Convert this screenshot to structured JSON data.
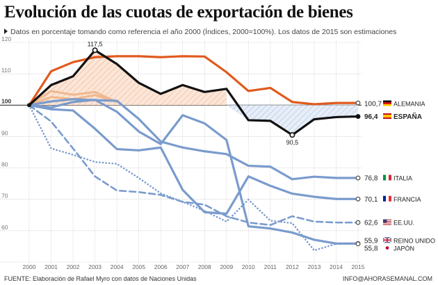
{
  "header": {
    "title": "Evolución de las cuotas de exportación de bienes",
    "subtitle": "Datos en porcentaje tomando como referencia el año 2000 (Índices, 2000=100%). Los datos de 2015 son estimaciones"
  },
  "footer": {
    "source": "FUENTE: Elaboración de Rafael Myro con datos de Naciones Unidas",
    "credit": "INFO@AHORASEMANAL.COM"
  },
  "chart_data": {
    "type": "line",
    "x": [
      2000,
      2001,
      2002,
      2003,
      2004,
      2005,
      2006,
      2007,
      2008,
      2009,
      2010,
      2011,
      2012,
      2013,
      2014,
      2015
    ],
    "ylim": [
      50,
      120
    ],
    "yticks": [
      50,
      60,
      70,
      80,
      90,
      100,
      110,
      120
    ],
    "baseline": 100,
    "baseline_label": "100",
    "series": [
      {
        "name": "ALEMANIA",
        "label": "100,7",
        "color": "#e05a1e",
        "style": "solid",
        "width": 3.2,
        "flag": "germany",
        "values": [
          100,
          110.8,
          113.7,
          115.3,
          115.6,
          115.6,
          115.3,
          115.6,
          115.5,
          110.5,
          104.5,
          105.5,
          101,
          100.3,
          100.7,
          100.7
        ]
      },
      {
        "name": "ESPAÑA",
        "label": "96,4",
        "color": "#111111",
        "style": "solid",
        "width": 3.2,
        "flag": "spain",
        "bold": true,
        "values": [
          100,
          106.4,
          109.2,
          117.5,
          113.1,
          107.1,
          103.6,
          106.4,
          104.2,
          105.2,
          95.2,
          95.0,
          90.5,
          95.5,
          96.2,
          96.4
        ]
      },
      {
        "name": "ITALIA",
        "label": "76,8",
        "color": "#7a9bcd",
        "style": "solid",
        "width": 3.2,
        "flag": "italy",
        "values": [
          100,
          101.2,
          101.9,
          101.6,
          101.4,
          95.6,
          88.4,
          86.5,
          85.3,
          84.4,
          80.7,
          80.4,
          76.4,
          77.2,
          76.8,
          76.8
        ]
      },
      {
        "name": "FRANCIA",
        "label": "70,1",
        "color": "#7a9bcd",
        "style": "solid",
        "width": 3.2,
        "flag": "france",
        "values": [
          100,
          98.7,
          98.3,
          92.5,
          86.0,
          85.6,
          86.5,
          73,
          65.9,
          65.4,
          77.3,
          74.3,
          71.8,
          70.8,
          70.1,
          70.1
        ]
      },
      {
        "name": "EE.UU.",
        "label": "62,6",
        "color": "#7a9bcd",
        "style": "dashed",
        "width": 2.6,
        "flag": "usa",
        "values": [
          100,
          94.8,
          86.2,
          77.3,
          72.8,
          72.3,
          71.4,
          69.2,
          68.3,
          64.6,
          62.6,
          61.8,
          64.6,
          62.9,
          62.6,
          62.6
        ]
      },
      {
        "name": "REINO UNIDO",
        "label": "55,9",
        "color": "#7a9bcd",
        "style": "solid",
        "width": 3.2,
        "flag": "uk",
        "values": [
          100,
          99.3,
          101.0,
          101.7,
          97.9,
          91.6,
          87.6,
          96.8,
          94.2,
          88.9,
          61.4,
          60.7,
          59.4,
          57.1,
          55.9,
          55.9
        ]
      },
      {
        "name": "JAPÓN",
        "label": "55,8",
        "color": "#7a9bcd",
        "style": "dotted",
        "width": 2.6,
        "flag": "japan",
        "values": [
          100,
          86.2,
          84.2,
          81.9,
          81.3,
          76.8,
          71.9,
          69.2,
          66.3,
          62.9,
          69.9,
          63.2,
          62.4,
          53.7,
          55.8,
          55.8
        ]
      }
    ],
    "annotations": [
      {
        "x": 2003,
        "y": 117.5,
        "text": "117,5",
        "position": "above"
      },
      {
        "x": 2012,
        "y": 90.5,
        "text": "90,5",
        "position": "below"
      }
    ],
    "shaded_regions": [
      {
        "series": "ESPAÑA",
        "relative_to": 100,
        "side": "above",
        "color": "#e8926a",
        "pattern": "hatch",
        "x_range": [
          2000,
          2009
        ]
      },
      {
        "series": "ESPAÑA",
        "relative_to": 100,
        "side": "below",
        "color": "#7a9bcd",
        "pattern": "hatch",
        "x_range": [
          2009,
          2015
        ]
      }
    ],
    "extra_lines": [
      {
        "color": "#f0b88f",
        "width": 3,
        "values_x": [
          2000,
          2001,
          2002,
          2003,
          2004
        ],
        "values_y": [
          100,
          104.5,
          103.3,
          104.2,
          101
        ]
      },
      {
        "color": "#f0b88f",
        "width": 3,
        "values_x": [
          2000,
          2001,
          2002,
          2003,
          2004
        ],
        "values_y": [
          100,
          102.6,
          101.9,
          103.2,
          101
        ]
      }
    ]
  }
}
